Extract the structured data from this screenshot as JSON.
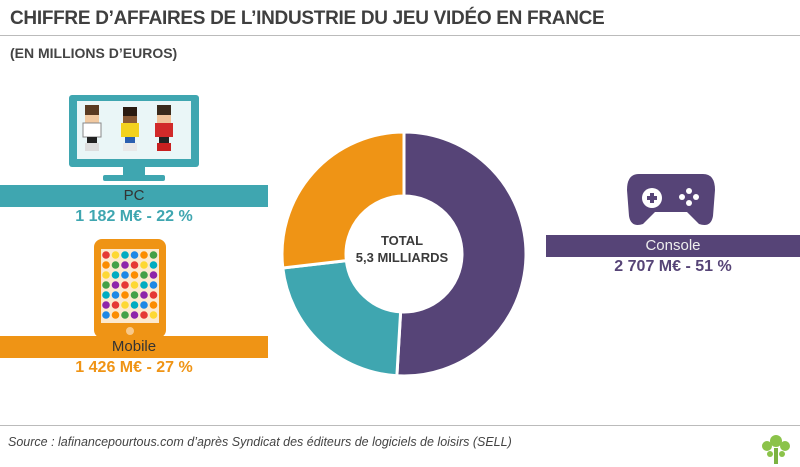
{
  "title": "CHIFFRE D’AFFAIRES DE L’INDUSTRIE DU JEU VIDÉO EN FRANCE",
  "subtitle": "(EN MILLIONS D’EUROS)",
  "center": {
    "line1": "TOTAL",
    "line2": "5,3 MILLIARDS"
  },
  "source": "Source : lafinancepourtous.com d’après Syndicat des éditeurs de logiciels de loisirs (SELL)",
  "colors": {
    "console": "#564477",
    "pc": "#3fa6b0",
    "mobile": "#ef9415"
  },
  "chart_data": {
    "type": "pie",
    "categories": [
      "Console",
      "PC",
      "Mobile"
    ],
    "values": [
      2707,
      1182,
      1426
    ],
    "percents": [
      51,
      22,
      27
    ],
    "unit": "M€",
    "labels": {
      "console": "Console",
      "console_value": "2 707 M€ - 51 %",
      "pc": "PC",
      "pc_value": "1 182 M€ - 22 %",
      "mobile": "Mobile",
      "mobile_value": "1 426 M€ - 27 %"
    }
  }
}
